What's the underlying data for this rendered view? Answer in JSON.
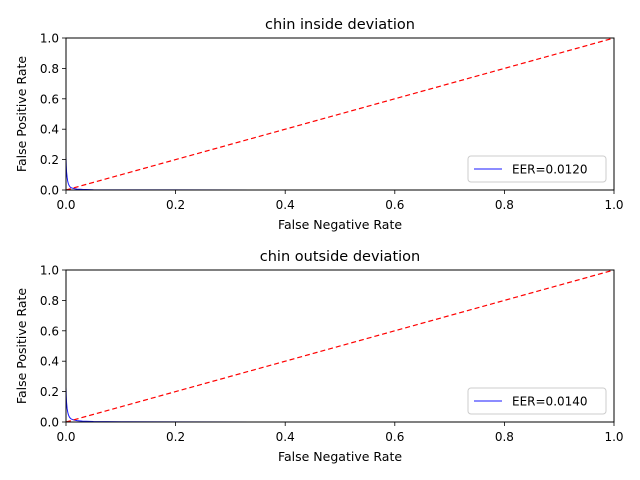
{
  "chart_data": [
    {
      "type": "line",
      "title": "chin inside deviation",
      "xlabel": "False Negative Rate",
      "ylabel": "False Positive Rate",
      "xlim": [
        0,
        1
      ],
      "ylim": [
        0,
        1
      ],
      "xticks": [
        "0.0",
        "0.2",
        "0.4",
        "0.6",
        "0.8",
        "1.0"
      ],
      "yticks": [
        "0.0",
        "0.2",
        "0.4",
        "0.6",
        "0.8",
        "1.0"
      ],
      "grid": false,
      "legend_position": "lower right",
      "series": [
        {
          "name": "EER=0.0120",
          "color": "#0000ff",
          "style": "solid",
          "x": [
            0.0,
            0.0005,
            0.001,
            0.002,
            0.003,
            0.004,
            0.005,
            0.006,
            0.008,
            0.01,
            0.012,
            0.015,
            0.02,
            0.03,
            0.05,
            0.1,
            0.2,
            0.4,
            0.6,
            0.8,
            1.0
          ],
          "y": [
            0.22,
            0.16,
            0.12,
            0.085,
            0.06,
            0.045,
            0.035,
            0.028,
            0.018,
            0.014,
            0.012,
            0.009,
            0.006,
            0.004,
            0.002,
            0.001,
            0.0005,
            0.0002,
            0.0001,
            0.0,
            0.0
          ]
        },
        {
          "name": "",
          "color": "#ff0000",
          "style": "dashed",
          "x": [
            0,
            1
          ],
          "y": [
            0,
            1
          ]
        }
      ]
    },
    {
      "type": "line",
      "title": "chin outside deviation",
      "xlabel": "False Negative Rate",
      "ylabel": "False Positive Rate",
      "xlim": [
        0,
        1
      ],
      "ylim": [
        0,
        1
      ],
      "xticks": [
        "0.0",
        "0.2",
        "0.4",
        "0.6",
        "0.8",
        "1.0"
      ],
      "yticks": [
        "0.0",
        "0.2",
        "0.4",
        "0.6",
        "0.8",
        "1.0"
      ],
      "grid": false,
      "legend_position": "lower right",
      "series": [
        {
          "name": "EER=0.0140",
          "color": "#0000ff",
          "style": "solid",
          "x": [
            0.0,
            0.0005,
            0.001,
            0.002,
            0.003,
            0.004,
            0.005,
            0.006,
            0.008,
            0.01,
            0.012,
            0.014,
            0.016,
            0.02,
            0.03,
            0.05,
            0.1,
            0.2,
            0.4,
            0.6,
            0.8,
            1.0
          ],
          "y": [
            0.23,
            0.17,
            0.13,
            0.09,
            0.068,
            0.052,
            0.042,
            0.034,
            0.024,
            0.019,
            0.016,
            0.014,
            0.012,
            0.009,
            0.006,
            0.003,
            0.0015,
            0.0006,
            0.0002,
            0.0001,
            0.0,
            0.0
          ]
        },
        {
          "name": "",
          "color": "#ff0000",
          "style": "dashed",
          "x": [
            0,
            1
          ],
          "y": [
            0,
            1
          ]
        }
      ]
    }
  ]
}
